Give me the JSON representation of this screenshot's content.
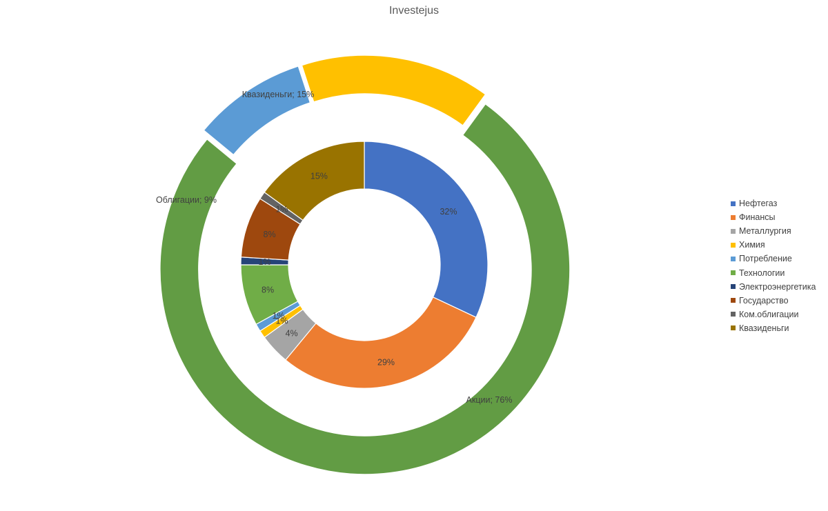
{
  "chart_data": {
    "type": "donut",
    "title": "Investejus",
    "outer_ring": [
      {
        "label": "Квазиденьги; 15%",
        "value": 15,
        "color": "#FFC000"
      },
      {
        "label": "Акции; 76%",
        "value": 76,
        "color": "#629C44"
      },
      {
        "label": "Облигации; 9%",
        "value": 9,
        "color": "#5B9BD5"
      }
    ],
    "inner_ring": [
      {
        "name": "Нефтегаз",
        "value": 32,
        "label": "32%",
        "color": "#4472C4"
      },
      {
        "name": "Финансы",
        "value": 29,
        "label": "29%",
        "color": "#ED7D31"
      },
      {
        "name": "Металлургия",
        "value": 4,
        "label": "4%",
        "color": "#A5A5A5"
      },
      {
        "name": "Химия",
        "value": 1,
        "label": "1%",
        "color": "#FFC000"
      },
      {
        "name": "Потребление",
        "value": 1,
        "label": "1%",
        "color": "#5B9BD5"
      },
      {
        "name": "Технологии",
        "value": 8,
        "label": "8%",
        "color": "#70AD47"
      },
      {
        "name": "Электроэнергетика",
        "value": 1,
        "label": "1%",
        "color": "#264478"
      },
      {
        "name": "Государство",
        "value": 8,
        "label": "8%",
        "color": "#9E480E"
      },
      {
        "name": "Ком.облигации",
        "value": 1,
        "label": "1%",
        "color": "#636363"
      },
      {
        "name": "Квазиденьги",
        "value": 15,
        "label": "15%",
        "color": "#997300"
      }
    ],
    "legend_position": "right"
  }
}
